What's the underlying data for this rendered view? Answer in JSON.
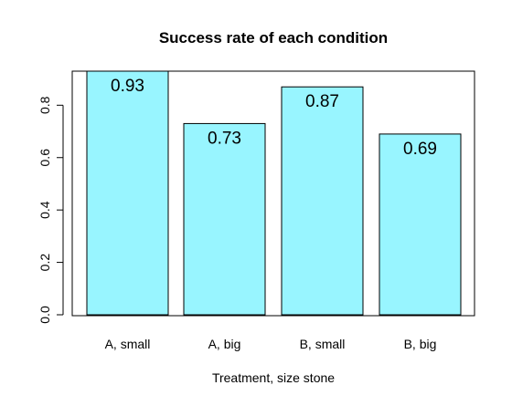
{
  "chart_data": {
    "type": "bar",
    "title": "Success rate of each condition",
    "xlabel": "Treatment, size stone",
    "ylabel": "",
    "categories": [
      "A, small",
      "A, big",
      "B, small",
      "B, big"
    ],
    "values": [
      0.93,
      0.73,
      0.87,
      0.69
    ],
    "data_labels": [
      "0.93",
      "0.73",
      "0.87",
      "0.69"
    ],
    "ylim": [
      0,
      0.93
    ],
    "yticks": [
      0.0,
      0.2,
      0.4,
      0.6,
      0.8
    ],
    "ytick_labels": [
      "0.0",
      "0.2",
      "0.4",
      "0.6",
      "0.8"
    ],
    "bar_color": "#98F5FF",
    "bar_edge_color": "#000000",
    "grid": false,
    "legend": "none"
  }
}
